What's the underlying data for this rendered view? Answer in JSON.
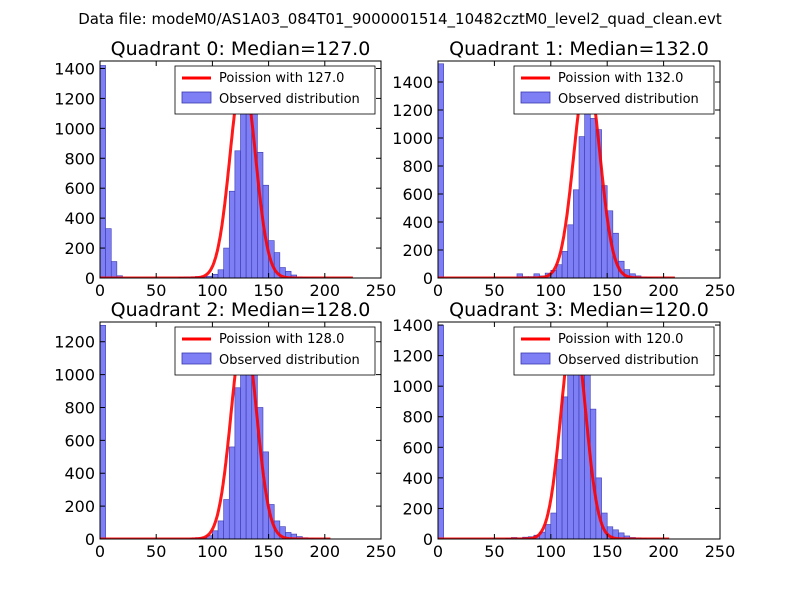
{
  "figure_title": "Data file: modeM0/AS1A03_084T01_9000001514_10482cztM0_level2_quad_clean.evt",
  "colors": {
    "bar_fill": "#7f7ff5",
    "bar_edge": "#3a3ab0",
    "poisson_line": "#ff0000"
  },
  "chart_data": [
    {
      "type": "bar",
      "title": "Quadrant 0: Median=127.0",
      "xlim": [
        0,
        250
      ],
      "ylim": [
        0,
        1450
      ],
      "xticks": [
        0,
        50,
        100,
        150,
        200,
        250
      ],
      "yticks": [
        0,
        200,
        400,
        600,
        800,
        1000,
        1200,
        1400
      ],
      "bin_width": 5,
      "legend": [
        "Poission with 127.0",
        "Observed distribution"
      ],
      "bins": [
        [
          0,
          1420
        ],
        [
          5,
          330
        ],
        [
          10,
          110
        ],
        [
          15,
          15
        ],
        [
          70,
          5
        ],
        [
          75,
          8
        ],
        [
          80,
          8
        ],
        [
          85,
          10
        ],
        [
          90,
          10
        ],
        [
          95,
          12
        ],
        [
          100,
          25
        ],
        [
          105,
          55
        ],
        [
          110,
          200
        ],
        [
          115,
          580
        ],
        [
          120,
          850
        ],
        [
          125,
          1230
        ],
        [
          130,
          1170
        ],
        [
          135,
          1180
        ],
        [
          140,
          840
        ],
        [
          145,
          620
        ],
        [
          150,
          250
        ],
        [
          155,
          170
        ],
        [
          160,
          70
        ],
        [
          165,
          45
        ],
        [
          170,
          20
        ],
        [
          175,
          8
        ],
        [
          180,
          4
        ],
        [
          185,
          3
        ],
        [
          190,
          2
        ],
        [
          195,
          1
        ],
        [
          200,
          1
        ],
        [
          220,
          1
        ]
      ],
      "poisson": {
        "mean": 127.0,
        "peak": 1360,
        "x_range": [
          0,
          225
        ]
      }
    },
    {
      "type": "bar",
      "title": "Quadrant 1: Median=132.0",
      "xlim": [
        0,
        250
      ],
      "ylim": [
        0,
        1550
      ],
      "xticks": [
        0,
        50,
        100,
        150,
        200,
        250
      ],
      "yticks": [
        0,
        200,
        400,
        600,
        800,
        1000,
        1200,
        1400
      ],
      "bin_width": 5,
      "legend": [
        "Poission with 132.0",
        "Observed distribution"
      ],
      "bins": [
        [
          0,
          1530
        ],
        [
          70,
          30
        ],
        [
          75,
          10
        ],
        [
          80,
          10
        ],
        [
          85,
          30
        ],
        [
          90,
          15
        ],
        [
          95,
          35
        ],
        [
          100,
          55
        ],
        [
          105,
          95
        ],
        [
          110,
          190
        ],
        [
          115,
          380
        ],
        [
          120,
          630
        ],
        [
          125,
          1010
        ],
        [
          130,
          1440
        ],
        [
          135,
          1140
        ],
        [
          140,
          1060
        ],
        [
          145,
          660
        ],
        [
          150,
          480
        ],
        [
          155,
          320
        ],
        [
          160,
          120
        ],
        [
          165,
          60
        ],
        [
          170,
          30
        ],
        [
          175,
          15
        ],
        [
          180,
          8
        ],
        [
          185,
          5
        ],
        [
          190,
          3
        ],
        [
          200,
          1
        ]
      ],
      "poisson": {
        "mean": 132.0,
        "peak": 1470,
        "x_range": [
          0,
          210
        ]
      }
    },
    {
      "type": "bar",
      "title": "Quadrant 2: Median=128.0",
      "xlim": [
        0,
        250
      ],
      "ylim": [
        0,
        1320
      ],
      "xticks": [
        0,
        50,
        100,
        150,
        200,
        250
      ],
      "yticks": [
        0,
        200,
        400,
        600,
        800,
        1000,
        1200
      ],
      "bin_width": 5,
      "legend": [
        "Poission with 128.0",
        "Observed distribution"
      ],
      "bins": [
        [
          0,
          1300
        ],
        [
          80,
          5
        ],
        [
          85,
          8
        ],
        [
          90,
          10
        ],
        [
          95,
          20
        ],
        [
          100,
          50
        ],
        [
          105,
          110
        ],
        [
          110,
          240
        ],
        [
          115,
          560
        ],
        [
          120,
          920
        ],
        [
          125,
          1250
        ],
        [
          130,
          1270
        ],
        [
          135,
          1180
        ],
        [
          140,
          800
        ],
        [
          145,
          530
        ],
        [
          150,
          210
        ],
        [
          155,
          110
        ],
        [
          160,
          75
        ],
        [
          165,
          40
        ],
        [
          170,
          30
        ],
        [
          175,
          15
        ],
        [
          180,
          8
        ],
        [
          185,
          5
        ],
        [
          190,
          3
        ],
        [
          195,
          2
        ],
        [
          200,
          1
        ]
      ],
      "poisson": {
        "mean": 128.0,
        "peak": 1270,
        "x_range": [
          0,
          205
        ]
      }
    },
    {
      "type": "bar",
      "title": "Quadrant 3: Median=120.0",
      "xlim": [
        0,
        250
      ],
      "ylim": [
        0,
        1420
      ],
      "xticks": [
        0,
        50,
        100,
        150,
        200,
        250
      ],
      "yticks": [
        0,
        200,
        400,
        600,
        800,
        1000,
        1200,
        1400
      ],
      "bin_width": 5,
      "legend": [
        "Poission with 120.0",
        "Observed distribution"
      ],
      "bins": [
        [
          0,
          1400
        ],
        [
          60,
          5
        ],
        [
          65,
          10
        ],
        [
          70,
          8
        ],
        [
          75,
          12
        ],
        [
          80,
          15
        ],
        [
          85,
          25
        ],
        [
          90,
          45
        ],
        [
          95,
          95
        ],
        [
          100,
          170
        ],
        [
          105,
          520
        ],
        [
          110,
          930
        ],
        [
          115,
          1240
        ],
        [
          120,
          1290
        ],
        [
          125,
          1200
        ],
        [
          130,
          1200
        ],
        [
          135,
          850
        ],
        [
          140,
          400
        ],
        [
          145,
          170
        ],
        [
          150,
          80
        ],
        [
          155,
          60
        ],
        [
          160,
          40
        ],
        [
          165,
          20
        ],
        [
          170,
          10
        ],
        [
          175,
          8
        ],
        [
          180,
          4
        ],
        [
          185,
          2
        ],
        [
          190,
          2
        ],
        [
          195,
          1
        ],
        [
          200,
          1
        ]
      ],
      "poisson": {
        "mean": 120.0,
        "peak": 1370,
        "x_range": [
          0,
          205
        ]
      }
    }
  ]
}
